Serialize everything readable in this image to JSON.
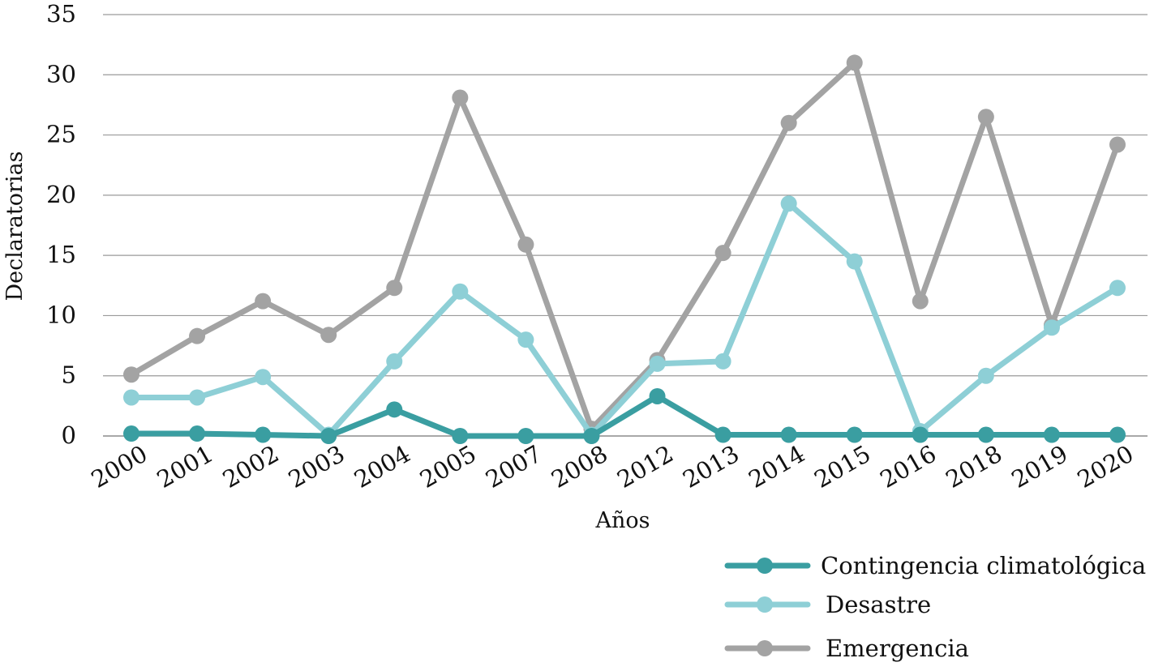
{
  "chart_data": {
    "type": "line",
    "xlabel": "Años",
    "ylabel": "Declaratorias",
    "categories": [
      "2000",
      "2001",
      "2002",
      "2003",
      "2004",
      "2005",
      "2007",
      "2008",
      "2012",
      "2013",
      "2014",
      "2015",
      "2016",
      "2018",
      "2019",
      "2020"
    ],
    "ylim": [
      0,
      35
    ],
    "yticks": [
      0,
      5,
      10,
      15,
      20,
      25,
      30,
      35
    ],
    "grid": true,
    "legend_position": "bottom-right",
    "series": [
      {
        "name": "Contingencia climatológica",
        "color": "#3a9ea1",
        "values": [
          0.2,
          0.2,
          0.1,
          0,
          2.2,
          0,
          0,
          0,
          3.3,
          0.1,
          0.1,
          0.1,
          0.1,
          0.1,
          0.1,
          0.1
        ]
      },
      {
        "name": "Desastre",
        "color": "#8ecfd6",
        "values": [
          3.2,
          3.2,
          4.9,
          0.1,
          6.2,
          12.0,
          8.0,
          0.1,
          6.0,
          6.2,
          19.3,
          14.5,
          0.4,
          5.0,
          9.0,
          12.3
        ]
      },
      {
        "name": "Emergencia",
        "color": "#a3a3a3",
        "values": [
          5.1,
          8.3,
          11.2,
          8.4,
          12.3,
          28.1,
          15.9,
          0.6,
          6.3,
          15.2,
          26.0,
          31.0,
          11.2,
          26.5,
          9.2,
          24.2
        ]
      }
    ]
  }
}
